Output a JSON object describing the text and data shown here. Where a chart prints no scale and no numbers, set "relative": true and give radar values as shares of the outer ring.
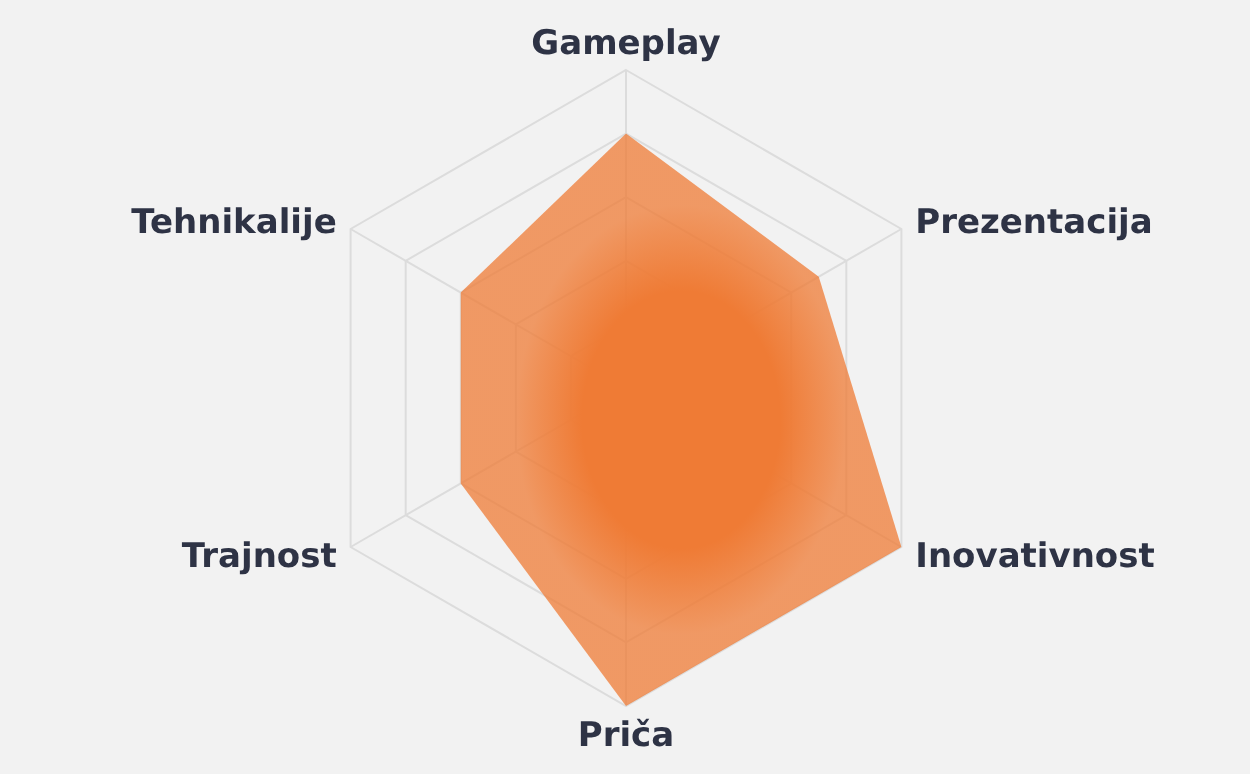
{
  "chart_data": {
    "type": "radar",
    "relative": true,
    "categories": [
      "Gameplay",
      "Prezentacija",
      "Inovativnost",
      "Priča",
      "Trajnost",
      "Tehnikalije"
    ],
    "series": [
      {
        "color": "#ef7b35",
        "values": [
          0.8,
          0.7,
          1.0,
          1.0,
          0.6,
          0.6
        ]
      }
    ],
    "grid": true,
    "legend": false
  }
}
